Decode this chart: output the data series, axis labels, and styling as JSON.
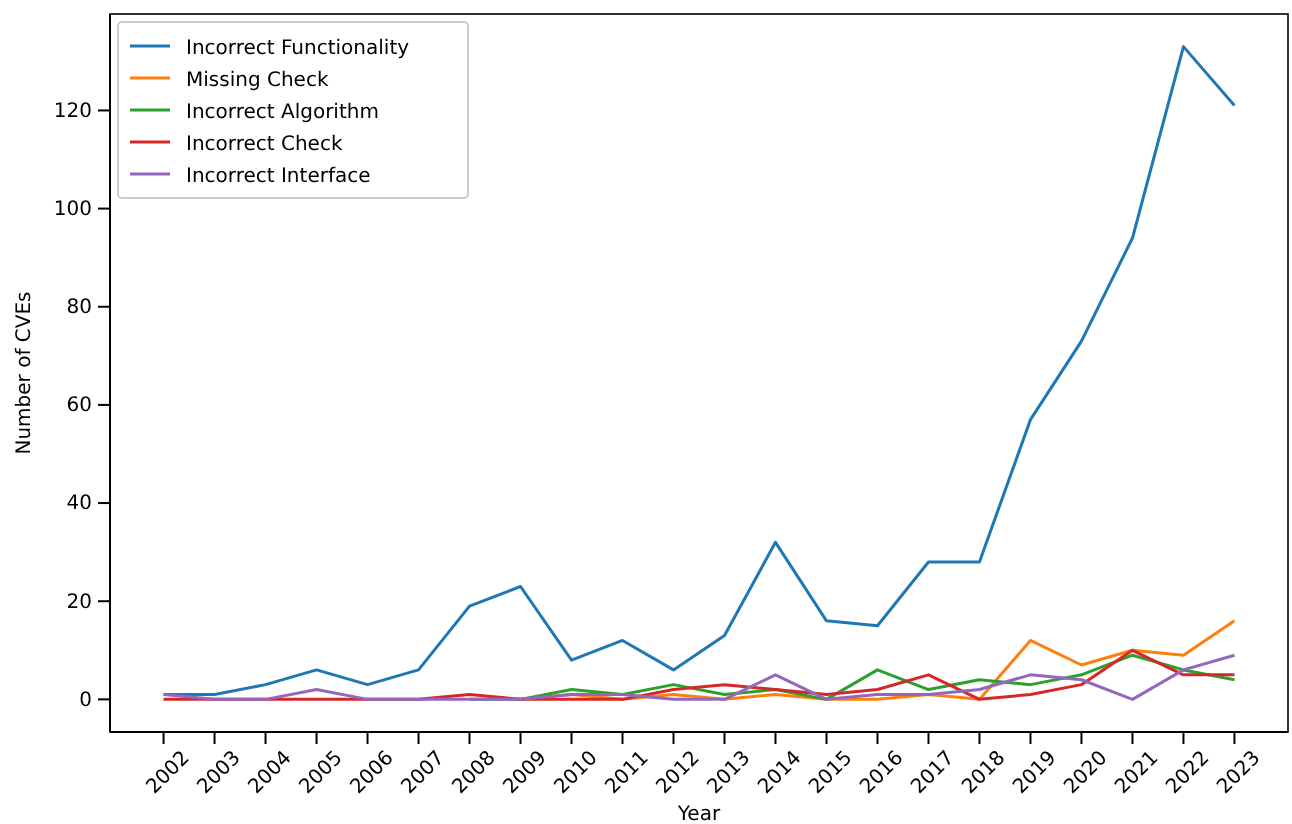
{
  "chart_data": {
    "type": "line",
    "xlabel": "Year",
    "ylabel": "Number of CVEs",
    "x": [
      2002,
      2003,
      2004,
      2005,
      2006,
      2007,
      2008,
      2009,
      2010,
      2011,
      2012,
      2013,
      2014,
      2015,
      2016,
      2017,
      2018,
      2019,
      2020,
      2021,
      2022,
      2023
    ],
    "xlim": [
      2000.95,
      2024.05
    ],
    "xticks": [
      2002,
      2003,
      2004,
      2005,
      2006,
      2007,
      2008,
      2009,
      2010,
      2011,
      2012,
      2013,
      2014,
      2015,
      2016,
      2017,
      2018,
      2019,
      2020,
      2021,
      2022,
      2023
    ],
    "ylim": [
      -6.65,
      139.65
    ],
    "yticks": [
      0,
      20,
      40,
      60,
      80,
      100,
      120
    ],
    "legend": "top left",
    "grid": false,
    "series": [
      {
        "name": "Incorrect Functionality",
        "color": "#1f77b4",
        "values": [
          1,
          1,
          3,
          6,
          3,
          6,
          19,
          23,
          8,
          12,
          6,
          13,
          32,
          16,
          15,
          28,
          28,
          57,
          73,
          94,
          133,
          121
        ]
      },
      {
        "name": "Missing Check",
        "color": "#ff7f0e",
        "values": [
          null,
          null,
          null,
          null,
          null,
          null,
          null,
          0,
          1,
          0,
          1,
          0,
          1,
          0,
          0,
          1,
          0,
          12,
          7,
          10,
          9,
          16
        ]
      },
      {
        "name": "Incorrect Algorithm",
        "color": "#2ca02c",
        "values": [
          null,
          null,
          null,
          null,
          null,
          null,
          0,
          0,
          2,
          1,
          3,
          1,
          2,
          0,
          6,
          2,
          4,
          3,
          5,
          9,
          6,
          4
        ]
      },
      {
        "name": "Incorrect Check",
        "color": "#d62728",
        "values": [
          0,
          0,
          0,
          0,
          0,
          0,
          1,
          0,
          0,
          0,
          2,
          3,
          2,
          1,
          2,
          5,
          0,
          1,
          3,
          10,
          5,
          5
        ]
      },
      {
        "name": "Incorrect Interface",
        "color": "#9467bd",
        "values": [
          1,
          0,
          0,
          2,
          0,
          0,
          0,
          0,
          1,
          1,
          0,
          0,
          5,
          0,
          1,
          1,
          2,
          5,
          4,
          0,
          6,
          9
        ]
      }
    ]
  }
}
